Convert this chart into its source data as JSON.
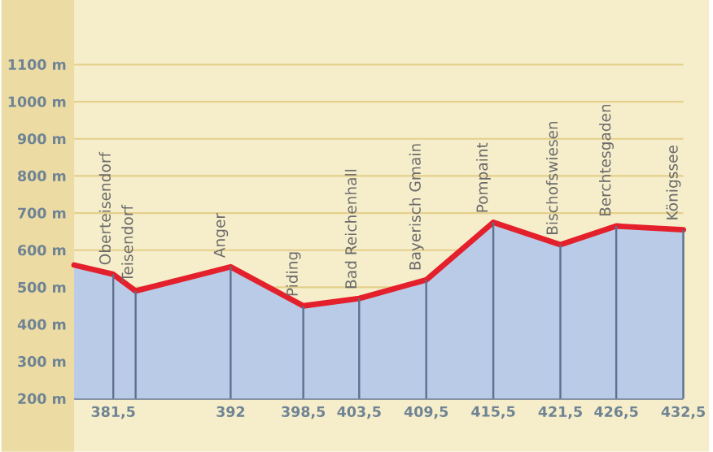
{
  "chart_data": {
    "type": "area",
    "x": [
      378,
      381.5,
      383.5,
      392,
      398.5,
      403.5,
      409.5,
      415.5,
      421.5,
      426.5,
      432.5
    ],
    "series": [
      {
        "color": "#b9cbe6",
        "values": [
          560,
          535,
          490,
          555,
          450,
          470,
          520,
          675,
          615,
          665,
          655
        ]
      },
      {
        "type": "line",
        "color": "#e3202b",
        "values": [
          560,
          535,
          490,
          555,
          450,
          470,
          520,
          675,
          615,
          665,
          655
        ]
      }
    ],
    "xlim": [
      378,
      432.5
    ],
    "ylim": [
      200,
      1100
    ],
    "xticks": [
      {
        "value": 381.5,
        "label": "381,5"
      },
      {
        "value": 392,
        "label": "392"
      },
      {
        "value": 398.5,
        "label": "398,5"
      },
      {
        "value": 403.5,
        "label": "403,5"
      },
      {
        "value": 409.5,
        "label": "409,5"
      },
      {
        "value": 415.5,
        "label": "415,5"
      },
      {
        "value": 421.5,
        "label": "421,5"
      },
      {
        "value": 426.5,
        "label": "426,5"
      },
      {
        "value": 432.5,
        "label": "432,5"
      }
    ],
    "yticks": [
      {
        "value": 200,
        "label": "200 m"
      },
      {
        "value": 300,
        "label": "300 m"
      },
      {
        "value": 400,
        "label": "400 m"
      },
      {
        "value": 500,
        "label": "500 m"
      },
      {
        "value": 600,
        "label": "600 m"
      },
      {
        "value": 700,
        "label": "700 m"
      },
      {
        "value": 800,
        "label": "800 m"
      },
      {
        "value": 900,
        "label": "900 m"
      },
      {
        "value": 1000,
        "label": "1000 m"
      },
      {
        "value": 1100,
        "label": "1100 m"
      }
    ],
    "ref_lines": [
      {
        "axis": "x",
        "value": 381.5,
        "label": "Oberteisendorf",
        "color": "#5f6f8f"
      },
      {
        "axis": "x",
        "value": 383.5,
        "label": "Teisendorf",
        "color": "#5f6f8f"
      },
      {
        "axis": "x",
        "value": 392,
        "label": "Anger",
        "color": "#5f6f8f"
      },
      {
        "axis": "x",
        "value": 398.5,
        "label": "Piding",
        "color": "#5f6f8f"
      },
      {
        "axis": "x",
        "value": 403.5,
        "label": "Bad Reichenhall",
        "color": "#5f6f8f"
      },
      {
        "axis": "x",
        "value": 409.5,
        "label": "Bayerisch Gmain",
        "color": "#5f6f8f"
      },
      {
        "axis": "x",
        "value": 415.5,
        "label": "Pompaint",
        "color": "#5f6f8f"
      },
      {
        "axis": "x",
        "value": 421.5,
        "label": "Bischofswiesen",
        "color": "#5f6f8f"
      },
      {
        "axis": "x",
        "value": 426.5,
        "label": "Berchtesgaden",
        "color": "#5f6f8f"
      },
      {
        "axis": "x",
        "value": 432.5,
        "label": "Königssee",
        "color": "#5f6f8f"
      }
    ],
    "grid": "y",
    "marker": "none",
    "line_style": "solid"
  }
}
